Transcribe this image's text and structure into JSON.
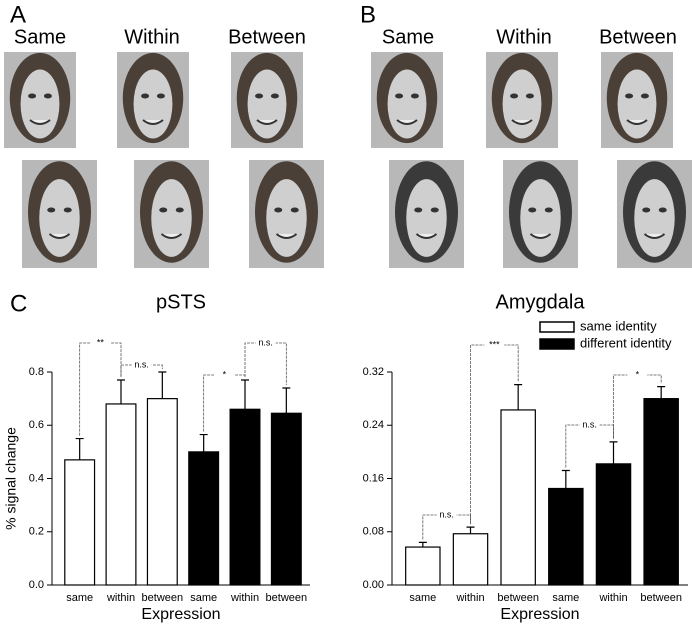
{
  "panel_labels": [
    "A",
    "B",
    "C"
  ],
  "face_panels": [
    {
      "column_labels": [
        "Same",
        "Within",
        "Between"
      ]
    },
    {
      "column_labels": [
        "Same",
        "Within",
        "Between"
      ]
    }
  ],
  "chart_data": [
    {
      "type": "bar",
      "title": "pSTS",
      "y_label": "% signal change",
      "x_label": "Expression",
      "categories": [
        "same",
        "within",
        "between",
        "same",
        "within",
        "between"
      ],
      "series": [
        {
          "color": "#ffffff",
          "values": [
            0.47,
            0.68,
            0.7,
            null,
            null,
            null
          ],
          "errors": [
            0.08,
            0.09,
            0.1,
            null,
            null,
            null
          ]
        },
        {
          "color": "#000000",
          "values": [
            null,
            null,
            null,
            0.5,
            0.66,
            0.645
          ],
          "errors": [
            null,
            null,
            null,
            0.065,
            0.11,
            0.095
          ]
        }
      ],
      "annotations": [
        "**",
        "n.s.",
        "*",
        "n.s."
      ],
      "ylim": [
        0,
        0.8
      ],
      "yticks": [
        {
          "value": 0,
          "label": "0.0"
        },
        0.2,
        0.4,
        0.6,
        0.8
      ]
    },
    {
      "type": "bar",
      "title": "Amygdala",
      "x_label": "Expression",
      "categories": [
        "same",
        "within",
        "between",
        "same",
        "within",
        "between"
      ],
      "series": [
        {
          "name": "same identity",
          "color": "#ffffff",
          "values": [
            0.057,
            0.077,
            0.263,
            null,
            null,
            null
          ],
          "errors": [
            0.007,
            0.01,
            0.038,
            null,
            null,
            null
          ]
        },
        {
          "name": "different identity",
          "color": "#000000",
          "values": [
            null,
            null,
            null,
            0.145,
            0.182,
            0.28
          ],
          "errors": [
            null,
            null,
            null,
            0.027,
            0.033,
            0.018
          ]
        }
      ],
      "annotations": [
        "n.s.",
        "***",
        "n.s.",
        "*"
      ],
      "ylim": [
        0,
        0.32
      ],
      "yticks": [
        {
          "value": 0,
          "label": "0.00"
        },
        0.08,
        0.16,
        0.24,
        0.32
      ]
    }
  ]
}
